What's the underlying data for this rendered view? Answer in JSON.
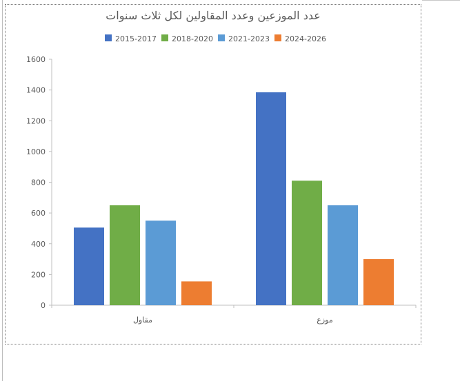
{
  "chart_data": {
    "type": "bar",
    "title": "عدد الموزعين وعدد المقاولين لكل ثلاث سنوات",
    "categories": [
      "مقاول",
      "موزع"
    ],
    "series": [
      {
        "name": "2015-2017",
        "color": "#4472c4",
        "values": [
          505,
          1385
        ]
      },
      {
        "name": "2018-2020",
        "color": "#70ad47",
        "values": [
          650,
          810
        ]
      },
      {
        "name": "2021-2023",
        "color": "#5b9bd5",
        "values": [
          550,
          650
        ]
      },
      {
        "name": "2024-2026",
        "color": "#ed7d31",
        "values": [
          155,
          300
        ]
      }
    ],
    "y_ticks": [
      "0",
      "200",
      "400",
      "600",
      "800",
      "1000",
      "1200",
      "1400",
      "1600"
    ],
    "ylim": [
      0,
      1600
    ],
    "grid": false,
    "legend_position": "top"
  }
}
